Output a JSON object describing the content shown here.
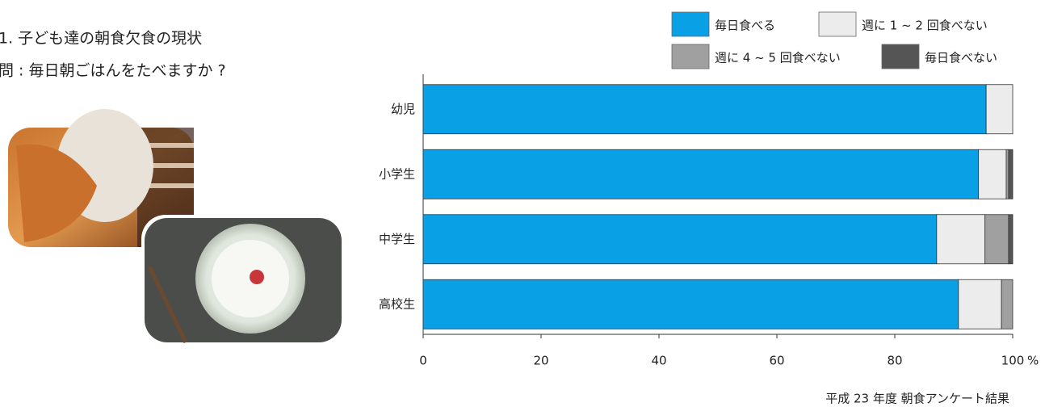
{
  "chart_data": {
    "type": "stacked-barh",
    "title": "1. 子ども達の朝食欠食の現状",
    "subtitle": "問 : 毎日朝ごはんをたべますか ?",
    "source": "平成 23 年度 朝食アンケート結果",
    "xlabel": "%",
    "categories": [
      "幼児",
      "小学生",
      "中学生",
      "高校生"
    ],
    "series": [
      {
        "name": "毎日食べる",
        "color": "#0aa0e6",
        "values": [
          95.5,
          94.2,
          87.1,
          90.8
        ]
      },
      {
        "name": "週に 1 ~ 2 回食べない",
        "color": "#ececec",
        "values": [
          4.5,
          4.7,
          8.2,
          7.3
        ]
      },
      {
        "name": "週に 4 ~ 5 回食べない",
        "color": "#a0a0a0",
        "values": [
          0,
          0.4,
          4.0,
          1.9
        ]
      },
      {
        "name": "毎日食べない",
        "color": "#555555",
        "values": [
          0,
          0.7,
          0.7,
          0
        ]
      }
    ],
    "xlim": [
      0,
      100
    ],
    "xticks": [
      0,
      20,
      40,
      60,
      80,
      100
    ]
  }
}
